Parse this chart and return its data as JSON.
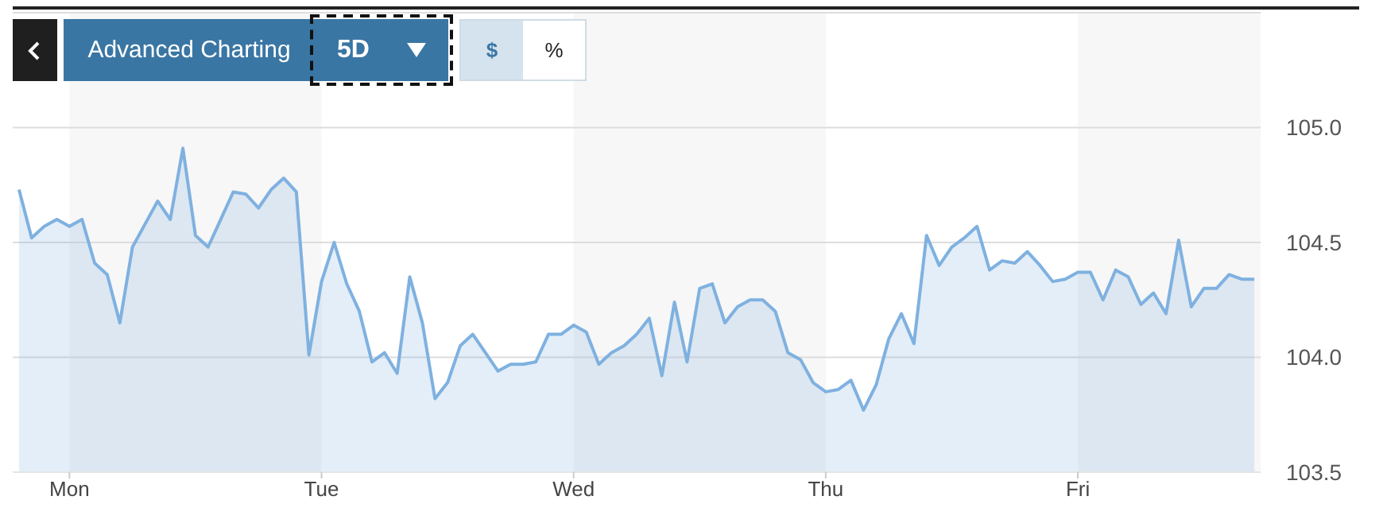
{
  "chart_data": {
    "type": "area",
    "annotations": [
      "Advanced Charting",
      "5D",
      "$",
      "%"
    ],
    "categories": [
      null,
      null,
      null,
      null,
      "Mon",
      null,
      null,
      null,
      null,
      null,
      null,
      null,
      null,
      null,
      null,
      null,
      null,
      null,
      null,
      null,
      null,
      null,
      null,
      null,
      "Tue",
      null,
      null,
      null,
      null,
      null,
      null,
      null,
      null,
      null,
      null,
      null,
      null,
      null,
      null,
      null,
      null,
      null,
      null,
      null,
      "Wed",
      null,
      null,
      null,
      null,
      null,
      null,
      null,
      null,
      null,
      null,
      null,
      null,
      null,
      null,
      null,
      null,
      null,
      null,
      null,
      "Thu",
      null,
      null,
      null,
      null,
      null,
      null,
      null,
      null,
      null,
      null,
      null,
      null,
      null,
      null,
      null,
      null,
      null,
      null,
      null,
      "Fri",
      null,
      null,
      null,
      null,
      null,
      null,
      null,
      null,
      null,
      null,
      null,
      null,
      null,
      null
    ],
    "series": [
      {
        "color": "#7fb1e0",
        "values": [
          104.73,
          104.52,
          104.57,
          104.6,
          104.57,
          104.6,
          104.41,
          104.36,
          104.15,
          104.48,
          104.58,
          104.68,
          104.6,
          104.91,
          104.53,
          104.48,
          104.6,
          104.72,
          104.71,
          104.65,
          104.73,
          104.78,
          104.72,
          104.01,
          104.33,
          104.5,
          104.32,
          104.2,
          103.98,
          104.02,
          103.93,
          104.35,
          104.15,
          103.82,
          103.89,
          104.05,
          104.1,
          104.02,
          103.94,
          103.97,
          103.97,
          103.98,
          104.1,
          104.1,
          104.14,
          104.11,
          103.97,
          104.02,
          104.05,
          104.1,
          104.17,
          103.92,
          104.24,
          103.98,
          104.3,
          104.32,
          104.15,
          104.22,
          104.25,
          104.25,
          104.2,
          104.02,
          103.99,
          103.89,
          103.85,
          103.86,
          103.9,
          103.77,
          103.88,
          104.08,
          104.19,
          104.06,
          104.53,
          104.4,
          104.48,
          104.52,
          104.57,
          104.38,
          104.42,
          104.41,
          104.46,
          104.4,
          104.33,
          104.34,
          104.37,
          104.37,
          104.25,
          104.38,
          104.35,
          104.23,
          104.28,
          104.19,
          104.51,
          104.22,
          104.3,
          104.3,
          104.36,
          104.34,
          104.34
        ]
      }
    ],
    "ylim": [
      103.5,
      105.5
    ],
    "yticks": [
      {
        "value": 103.5,
        "label": "103.5"
      },
      {
        "value": 104,
        "label": "104.0"
      },
      {
        "value": 104.5,
        "label": "104.5"
      },
      {
        "value": 105,
        "label": "105.0"
      }
    ],
    "grid": "y",
    "legend": false
  }
}
